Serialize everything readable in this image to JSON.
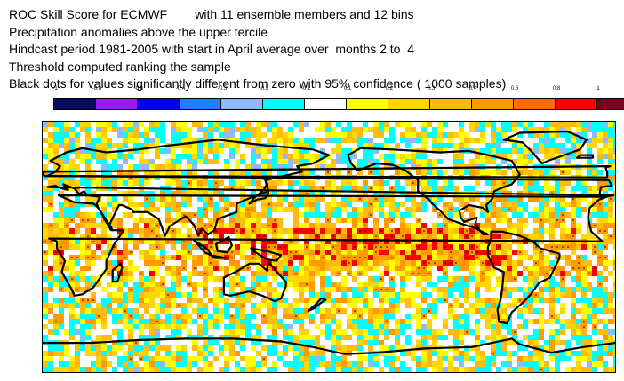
{
  "title_lines": [
    "ROC Skill Score for ECMWF        with 11 ensemble members and 12 bins",
    "Precipitation anomalies above the upper tercile",
    "Hindcast period 1981-2005 with start in April average over  months 2 to  4",
    "Threshold computed ranking the sample",
    "Black dots for values significantly different from zero with 95% confidence ( 1000 samples)"
  ],
  "colorbar": {
    "ticks": [
      "-1",
      "-0.8",
      "-0.6",
      "-0.4",
      "-0.3",
      "-0.2",
      "-0.1",
      "0.1",
      "0.2",
      "0.3",
      "0.4",
      "0.6",
      "0.8",
      "1"
    ],
    "colors": [
      "#0a0a5e",
      "#9b1cf0",
      "#0000ee",
      "#1f80ff",
      "#8fb8ff",
      "#00ffff",
      "#ffffff",
      "#ffff00",
      "#ffd700",
      "#ffbb10",
      "#ff9a00",
      "#ff6a00",
      "#ff0000",
      "#7a0020"
    ]
  },
  "map": {
    "projection": "equirectangular global",
    "field": "ROC skill score",
    "coastline_color": "#000000",
    "significance_dot_color": "#000000"
  }
}
